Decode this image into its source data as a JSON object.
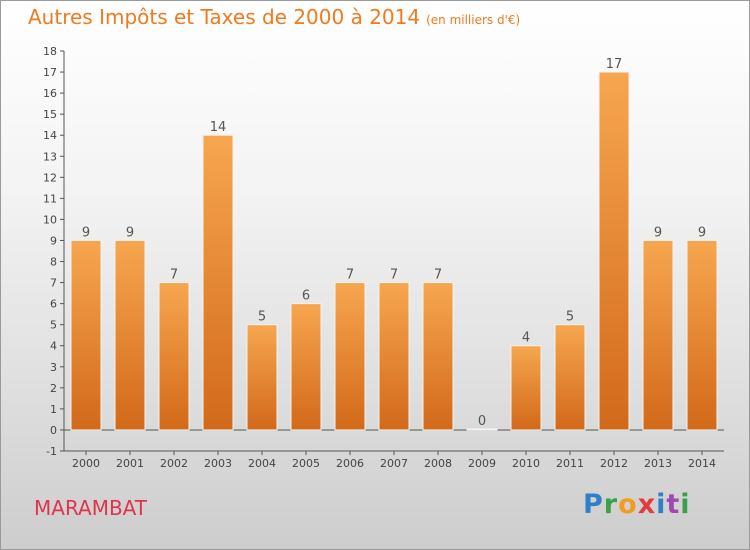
{
  "title": "Autres Impôts et Taxes de 2000 à 2014",
  "title_unit": "(en milliers d'€)",
  "commune": "MARAMBAT",
  "logo": {
    "letters": [
      "P",
      "r",
      "o",
      "x",
      "i",
      "t",
      "i"
    ]
  },
  "colors": {
    "title": "#f07a1f",
    "commune": "#e0344e",
    "bar_light": "#f7a04a",
    "bar_dark": "#d46c16"
  },
  "chart_data": {
    "type": "bar",
    "categories": [
      "2000",
      "2001",
      "2002",
      "2003",
      "2004",
      "2005",
      "2006",
      "2007",
      "2008",
      "2009",
      "2010",
      "2011",
      "2012",
      "2013",
      "2014"
    ],
    "values": [
      9,
      9,
      7,
      14,
      5,
      6,
      7,
      7,
      7,
      0,
      4,
      5,
      17,
      9,
      9
    ],
    "data_labels": [
      "9",
      "9",
      "7",
      "14",
      "5",
      "6",
      "7",
      "7",
      "7",
      "0",
      "4",
      "5",
      "17",
      "9",
      "9"
    ],
    "ylim": [
      -1,
      18
    ],
    "yticks": [
      -1,
      0,
      1,
      2,
      3,
      4,
      5,
      6,
      7,
      8,
      9,
      10,
      11,
      12,
      13,
      14,
      15,
      16,
      17,
      18
    ],
    "xlabel": "",
    "ylabel": "",
    "grid": false,
    "legend": "none"
  }
}
